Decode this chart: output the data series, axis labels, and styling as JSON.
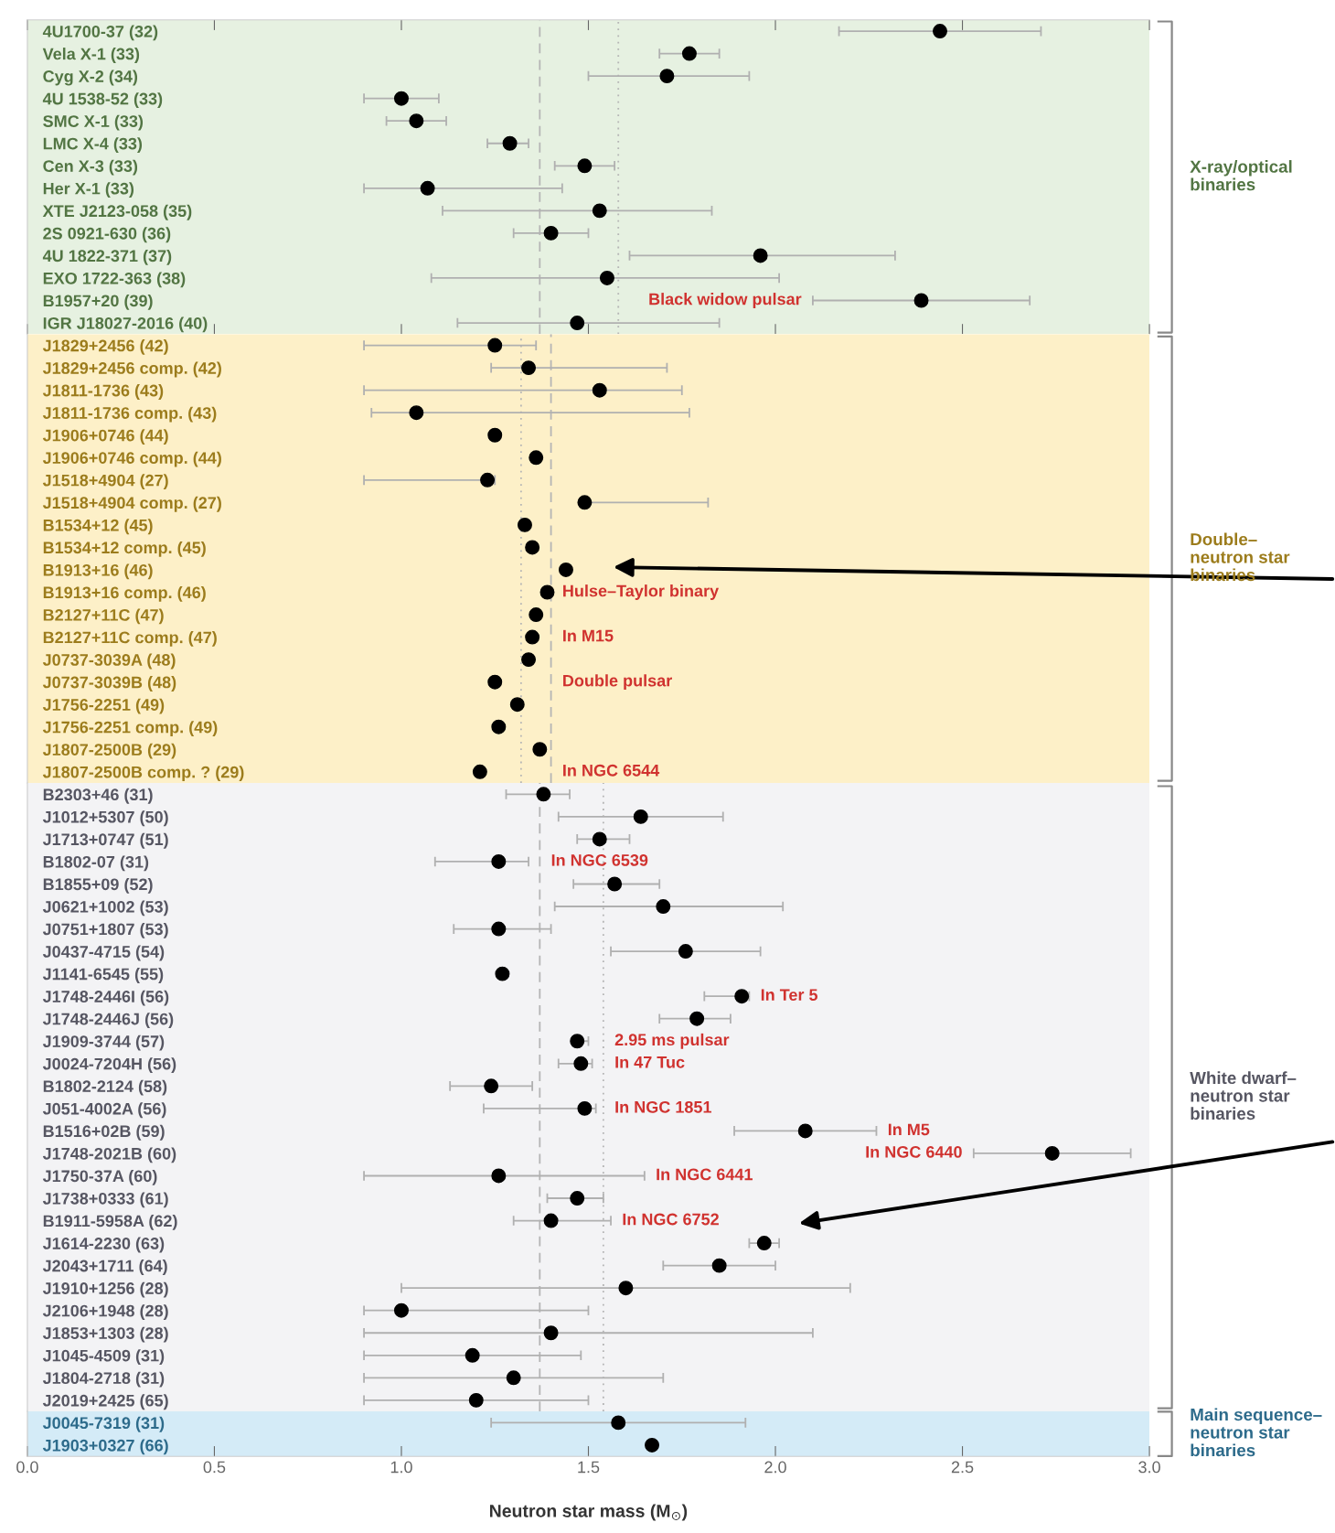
{
  "chart_data": [
    {
      "type": "scatter",
      "orientation": "horizontal",
      "color": "#000000",
      "marker": "circle",
      "xlim": [
        0,
        3
      ],
      "xticks": [
        0,
        0.5,
        1,
        1.5,
        2,
        2.5,
        3
      ],
      "tick_labels": "y",
      "y2label": "X-ray/optical\nbinaries",
      "categories": [
        "4U1700-37 (32)",
        "Vela X-1 (33)",
        "Cyg X-2 (34)",
        "4U 1538-52 (33)",
        "SMC X-1 (33)",
        "LMC X-4 (33)",
        "Cen X-3 (33)",
        "Her X-1 (33)",
        "XTE J2123-058 (35)",
        "2S 0921-630 (36)",
        "4U 1822-371 (37)",
        "EXO 1722-363 (38)",
        "B1957+20 (39)",
        "IGR J18027-2016 (40)"
      ],
      "values": [
        2.44,
        1.77,
        1.71,
        1.0,
        1.04,
        1.29,
        1.49,
        1.07,
        1.53,
        1.4,
        1.96,
        1.55,
        2.39,
        1.47
      ],
      "errors": [
        [
          2.17,
          2.71
        ],
        [
          1.69,
          1.85
        ],
        [
          1.5,
          1.93
        ],
        [
          0.9,
          1.1
        ],
        [
          0.96,
          1.12
        ],
        [
          1.23,
          1.34
        ],
        [
          1.41,
          1.57
        ],
        [
          0.9,
          1.43
        ],
        [
          1.11,
          1.83
        ],
        [
          1.3,
          1.5
        ],
        [
          1.61,
          2.32
        ],
        [
          1.08,
          2.01
        ],
        [
          2.1,
          2.68
        ],
        [
          1.15,
          1.85
        ]
      ],
      "bands": [
        {
          "axis": "x",
          "from": 0,
          "to": 3,
          "color": "#e6f1e1"
        }
      ],
      "ref_lines": [
        {
          "axis": "x",
          "value": 1.37,
          "line_style": "dashed",
          "color": "#b5b5b5"
        },
        {
          "axis": "x",
          "value": 1.58,
          "line_style": "dotted",
          "color": "#b5b5b5"
        }
      ],
      "annotations": [
        {
          "text": "Black widow pulsar",
          "x": 2.1,
          "y": "B1957+20 (39)"
        }
      ]
    },
    {
      "type": "scatter",
      "orientation": "horizontal",
      "color": "#000000",
      "marker": "circle",
      "xlim": [
        0,
        3
      ],
      "tick_labels": "y",
      "y2label": "Double–\nneutron star\nbinaries",
      "categories": [
        "J1829+2456 (42)",
        "J1829+2456 comp. (42)",
        "J1811-1736 (43)",
        "J1811-1736 comp. (43)",
        "J1906+0746 (44)",
        "J1906+0746 comp. (44)",
        "J1518+4904 (27)",
        "J1518+4904 comp. (27)",
        "B1534+12 (45)",
        "B1534+12 comp. (45)",
        "B1913+16 (46)",
        "B1913+16 comp. (46)",
        "B2127+11C (47)",
        "B2127+11C comp. (47)",
        "J0737-3039A (48)",
        "J0737-3039B (48)",
        "J1756-2251 (49)",
        "J1756-2251 comp. (49)",
        "J1807-2500B (29)",
        "J1807-2500B comp. ? (29)"
      ],
      "values": [
        1.25,
        1.34,
        1.53,
        1.04,
        1.25,
        1.36,
        1.23,
        1.49,
        1.33,
        1.35,
        1.44,
        1.39,
        1.36,
        1.35,
        1.34,
        1.25,
        1.31,
        1.26,
        1.37,
        1.21
      ],
      "errors": [
        [
          0.9,
          1.36
        ],
        [
          1.24,
          1.71
        ],
        [
          0.9,
          1.75
        ],
        [
          0.92,
          1.77
        ],
        null,
        null,
        [
          0.9,
          1.25
        ],
        [
          1.49,
          1.82
        ],
        null,
        null,
        null,
        null,
        null,
        null,
        null,
        null,
        null,
        null,
        null,
        null
      ],
      "bands": [
        {
          "axis": "x",
          "from": 0,
          "to": 3,
          "color": "#fdf0c8"
        }
      ],
      "ref_lines": [
        {
          "axis": "x",
          "value": 1.4,
          "line_style": "dashed",
          "color": "#b5b5b5"
        },
        {
          "axis": "x",
          "value": 1.32,
          "line_style": "dotted",
          "color": "#b5b5b5"
        }
      ],
      "annotations": [
        {
          "text": "Hulse–Taylor binary",
          "x": 1.4,
          "y": "B1913+16 comp. (46)"
        },
        {
          "text": "In M15",
          "x": 1.4,
          "y": "B2127+11C comp. (47)"
        },
        {
          "text": "Double pulsar",
          "x": 1.4,
          "y": "J0737-3039B (48)"
        },
        {
          "text": "In NGC 6544",
          "x": 1.4,
          "y": "J1807-2500B comp. ? (29)"
        }
      ]
    },
    {
      "type": "scatter",
      "orientation": "horizontal",
      "color": "#000000",
      "marker": "circle",
      "xlim": [
        0,
        3
      ],
      "tick_labels": "y",
      "y2label": "White dwarf–\nneutron star\nbinaries",
      "categories": [
        "B2303+46 (31)",
        "J1012+5307 (50)",
        "J1713+0747 (51)",
        "B1802-07 (31)",
        "B1855+09 (52)",
        "J0621+1002 (53)",
        "J0751+1807 (53)",
        "J0437-4715 (54)",
        "J1141-6545 (55)",
        "J1748-2446I (56)",
        "J1748-2446J (56)",
        "J1909-3744 (57)",
        "J0024-7204H (56)",
        "B1802-2124 (58)",
        "J051-4002A (56)",
        "B1516+02B (59)",
        "J1748-2021B (60)",
        "J1750-37A (60)",
        "J1738+0333 (61)",
        "B1911-5958A (62)",
        "J1614-2230 (63)",
        "J2043+1711 (64)",
        "J1910+1256 (28)",
        "J2106+1948 (28)",
        "J1853+1303 (28)",
        "J1045-4509 (31)",
        "J1804-2718 (31)",
        "J2019+2425 (65)"
      ],
      "values": [
        1.38,
        1.64,
        1.53,
        1.26,
        1.57,
        1.7,
        1.26,
        1.76,
        1.27,
        1.91,
        1.79,
        1.47,
        1.48,
        1.24,
        1.49,
        2.08,
        2.74,
        1.26,
        1.47,
        1.4,
        1.97,
        1.85,
        1.6,
        1.0,
        1.4,
        1.19,
        1.3,
        1.2
      ],
      "errors": [
        [
          1.28,
          1.45
        ],
        [
          1.42,
          1.86
        ],
        [
          1.47,
          1.61
        ],
        [
          1.09,
          1.34
        ],
        [
          1.46,
          1.69
        ],
        [
          1.41,
          2.02
        ],
        [
          1.14,
          1.4
        ],
        [
          1.56,
          1.96
        ],
        null,
        [
          1.81,
          1.93
        ],
        [
          1.69,
          1.88
        ],
        [
          1.46,
          1.5
        ],
        [
          1.42,
          1.51
        ],
        [
          1.13,
          1.35
        ],
        [
          1.22,
          1.52
        ],
        [
          1.89,
          2.27
        ],
        [
          2.53,
          2.95
        ],
        [
          0.9,
          1.65
        ],
        [
          1.39,
          1.54
        ],
        [
          1.3,
          1.56
        ],
        [
          1.93,
          2.01
        ],
        [
          1.7,
          2.0
        ],
        [
          1.0,
          2.2
        ],
        [
          0.9,
          1.5
        ],
        [
          0.9,
          2.1
        ],
        [
          0.9,
          1.48
        ],
        [
          0.9,
          1.7
        ],
        [
          0.9,
          1.5
        ]
      ],
      "bands": [
        {
          "axis": "x",
          "from": 0,
          "to": 3,
          "color": "#f3f3f5"
        }
      ],
      "ref_lines": [
        {
          "axis": "x",
          "value": 1.37,
          "line_style": "dashed",
          "color": "#b5b5b5"
        },
        {
          "axis": "x",
          "value": 1.54,
          "line_style": "dotted",
          "color": "#b5b5b5"
        }
      ],
      "annotations": [
        {
          "text": "In NGC 6539",
          "x": 1.37,
          "y": "B1802-07 (31)"
        },
        {
          "text": "In Ter 5",
          "x": 1.93,
          "y": "J1748-2446I (56)"
        },
        {
          "text": "2.95 ms pulsar",
          "x": 1.54,
          "y": "J1909-3744 (57)"
        },
        {
          "text": "In 47 Tuc",
          "x": 1.54,
          "y": "J0024-7204H (56)"
        },
        {
          "text": "In NGC 1851",
          "x": 1.54,
          "y": "J051-4002A (56)"
        },
        {
          "text": "In M5",
          "x": 2.27,
          "y": "B1516+02B (59)"
        },
        {
          "text": "In NGC 6440",
          "x": 2.53,
          "y": "J1748-2021B (60)"
        },
        {
          "text": "In NGC 6441",
          "x": 1.65,
          "y": "J1750-37A (60)"
        },
        {
          "text": "In NGC 6752",
          "x": 1.56,
          "y": "B1911-5958A (62)"
        }
      ]
    },
    {
      "type": "scatter",
      "orientation": "horizontal",
      "color": "#000000",
      "marker": "circle",
      "xlim": [
        0,
        3
      ],
      "xticks": [
        {
          "value": 0,
          "label": "0.0"
        },
        {
          "value": 0.5,
          "label": "0.5"
        },
        {
          "value": 1,
          "label": "1.0"
        },
        {
          "value": 1.5,
          "label": "1.5"
        },
        {
          "value": 2,
          "label": "2.0"
        },
        {
          "value": 2.5,
          "label": "2.5"
        },
        {
          "value": 3,
          "label": "3.0"
        }
      ],
      "xlabel": "Neutron star mass (M$_{⊙}$)",
      "y2label": "Main sequence–\nneutron star\nbinaries",
      "categories": [
        "J0045-7319 (31)",
        "J1903+0327 (66)"
      ],
      "values": [
        1.58,
        1.67
      ],
      "errors": [
        [
          1.24,
          1.92
        ],
        null
      ],
      "bands": [
        {
          "axis": "x",
          "from": 0,
          "to": 3,
          "color": "#d4ebf7"
        }
      ]
    }
  ]
}
